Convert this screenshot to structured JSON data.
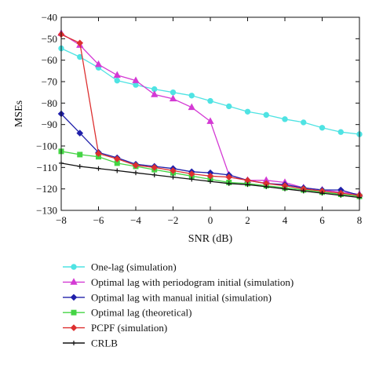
{
  "chart_data": {
    "type": "line",
    "xlabel": "SNR (dB)",
    "ylabel": "MSEs",
    "xlim": [
      -8,
      8
    ],
    "ylim": [
      -130,
      -40
    ],
    "xticks": [
      "−8",
      "−6",
      "−4",
      "−2",
      "0",
      "2",
      "4",
      "6",
      "8"
    ],
    "yticks": [
      "−40",
      "−50",
      "−60",
      "−70",
      "−80",
      "−90",
      "−100",
      "−110",
      "−120",
      "−130"
    ],
    "x": [
      -8,
      -7,
      -6,
      -5,
      -4,
      -3,
      -2,
      -1,
      0,
      1,
      2,
      3,
      4,
      5,
      6,
      7,
      8
    ],
    "grid": false,
    "legend_position": "below",
    "series": [
      {
        "name": "One-lag (simulation)",
        "color": "#4fe3e3",
        "marker": "circle",
        "values": [
          -54.5,
          -58.5,
          -63.5,
          -69.5,
          -71.5,
          -73.5,
          -75,
          -76.5,
          -79,
          -81.5,
          -84,
          -85.5,
          -87.5,
          -89,
          -91.5,
          -93.5,
          -94.5
        ]
      },
      {
        "name": "Optimal lag with periodogram initial (simulation)",
        "color": "#d43ad4",
        "marker": "triangle",
        "values": [
          -47.5,
          -53,
          -62,
          -67,
          -69.5,
          -76,
          -78,
          -82,
          -88.5,
          -113.5,
          -116,
          -116,
          -117,
          -119.5,
          -120.5,
          -121.5,
          -122.5
        ]
      },
      {
        "name": "Optimal lag with manual initial (simulation)",
        "color": "#2020aa",
        "marker": "diamond",
        "values": [
          -85,
          -94,
          -103,
          -105.5,
          -108.5,
          -109.5,
          -110.5,
          -112,
          -112.5,
          -113.5,
          -116,
          -117.5,
          -118,
          -119.5,
          -120.5,
          -120.5,
          -123
        ]
      },
      {
        "name": "Optimal lag (theoretical)",
        "color": "#44d444",
        "marker": "square",
        "values": [
          -102.5,
          -104,
          -105,
          -108,
          -109.5,
          -111,
          -112.5,
          -114,
          -115.5,
          -117,
          -117.5,
          -118.5,
          -119.5,
          -120.5,
          -121.5,
          -122.5,
          -123.5
        ]
      },
      {
        "name": "PCPF (simulation)",
        "color": "#dd3030",
        "marker": "diamond",
        "values": [
          -48,
          -52,
          -103.5,
          -106,
          -109,
          -110,
          -111.5,
          -113,
          -114,
          -114.5,
          -116,
          -117.5,
          -118.5,
          -120,
          -121,
          -122,
          -123
        ]
      },
      {
        "name": "CRLB",
        "color": "#111111",
        "marker": "plus",
        "values": [
          -108,
          -109.5,
          -110.5,
          -111.5,
          -112.5,
          -113.5,
          -114.5,
          -115.5,
          -116.5,
          -117.5,
          -118,
          -119,
          -120,
          -121,
          -122,
          -123,
          -124
        ]
      }
    ]
  }
}
